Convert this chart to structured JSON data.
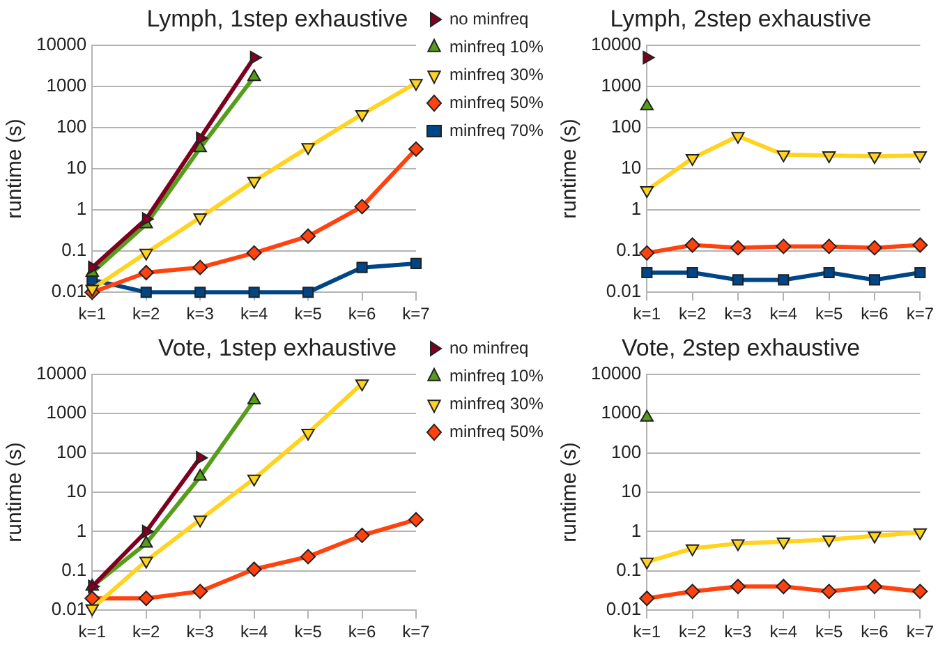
{
  "chart_data": [
    {
      "type": "line",
      "title": "Lymph, 1step exhaustive",
      "ylabel": "runtime (s)",
      "categories": [
        "k=1",
        "k=2",
        "k=3",
        "k=4",
        "k=5",
        "k=6",
        "k=7"
      ],
      "log": "y",
      "ylim": [
        0.01,
        10000
      ],
      "yticks": [
        0.01,
        0.1,
        1,
        10,
        100,
        1000,
        10000
      ],
      "grid": "y",
      "legend": "right",
      "line_style": "solid",
      "series": [
        {
          "name": "no minfreq",
          "color": "#7e0021",
          "marker": "triangle-right",
          "values": [
            0.04,
            0.6,
            55,
            5000,
            null,
            null,
            null
          ]
        },
        {
          "name": "minfreq 10%",
          "color": "#579d1c",
          "marker": "triangle",
          "values": [
            0.03,
            0.45,
            32,
            1700,
            null,
            null,
            null
          ]
        },
        {
          "name": "minfreq 30%",
          "color": "#ffd320",
          "marker": "triangle-down",
          "values": [
            0.012,
            0.09,
            0.65,
            5,
            33,
            210,
            1200
          ]
        },
        {
          "name": "minfreq 50%",
          "color": "#ff420e",
          "marker": "diamond",
          "values": [
            0.01,
            0.03,
            0.04,
            0.09,
            0.23,
            1.2,
            30
          ]
        },
        {
          "name": "minfreq 70%",
          "color": "#004586",
          "marker": "square",
          "values": [
            0.02,
            0.01,
            0.01,
            0.01,
            0.01,
            0.04,
            0.05
          ]
        }
      ]
    },
    {
      "type": "line",
      "title": "Lymph, 2step exhaustive",
      "ylabel": "runtime (s)",
      "categories": [
        "k=1",
        "k=2",
        "k=3",
        "k=4",
        "k=5",
        "k=6",
        "k=7"
      ],
      "log": "y",
      "ylim": [
        0.01,
        10000
      ],
      "yticks": [
        0.01,
        0.1,
        1,
        10,
        100,
        1000,
        10000
      ],
      "grid": "y",
      "line_style": "solid",
      "series": [
        {
          "color": "#7e0021",
          "marker": "triangle-right",
          "values": [
            5000,
            null,
            null,
            null,
            null,
            null,
            null
          ]
        },
        {
          "color": "#579d1c",
          "marker": "triangle",
          "values": [
            330,
            null,
            null,
            null,
            null,
            null,
            null
          ]
        },
        {
          "color": "#ffd320",
          "marker": "triangle-down",
          "values": [
            3,
            18,
            62,
            22,
            21,
            20,
            21
          ]
        },
        {
          "color": "#ff420e",
          "marker": "diamond",
          "values": [
            0.09,
            0.14,
            0.12,
            0.13,
            0.13,
            0.12,
            0.14
          ]
        },
        {
          "color": "#004586",
          "marker": "square",
          "values": [
            0.03,
            0.03,
            0.02,
            0.02,
            0.03,
            0.02,
            0.03
          ]
        }
      ]
    },
    {
      "type": "line",
      "title": "Vote, 1step exhaustive",
      "ylabel": "runtime (s)",
      "categories": [
        "k=1",
        "k=2",
        "k=3",
        "k=4",
        "k=5",
        "k=6",
        "k=7"
      ],
      "log": "y",
      "ylim": [
        0.01,
        10000
      ],
      "yticks": [
        0.01,
        0.1,
        1,
        10,
        100,
        1000,
        10000
      ],
      "grid": "y",
      "legend": "right",
      "line_style": "solid",
      "series": [
        {
          "name": "no minfreq",
          "color": "#7e0021",
          "marker": "triangle-right",
          "values": [
            0.04,
            1,
            75,
            null,
            null,
            null,
            null
          ]
        },
        {
          "name": "minfreq 10%",
          "color": "#579d1c",
          "marker": "triangle",
          "values": [
            0.04,
            0.5,
            25,
            2200,
            null,
            null,
            null
          ]
        },
        {
          "name": "minfreq 30%",
          "color": "#ffd320",
          "marker": "triangle-down",
          "values": [
            0.011,
            0.18,
            2,
            22,
            320,
            5800,
            null
          ]
        },
        {
          "name": "minfreq 50%",
          "color": "#ff420e",
          "marker": "diamond",
          "values": [
            0.02,
            0.02,
            0.03,
            0.11,
            0.23,
            0.8,
            2
          ]
        }
      ]
    },
    {
      "type": "line",
      "title": "Vote, 2step exhaustive",
      "ylabel": "runtime (s)",
      "categories": [
        "k=1",
        "k=2",
        "k=3",
        "k=4",
        "k=5",
        "k=6",
        "k=7"
      ],
      "log": "y",
      "ylim": [
        0.01,
        10000
      ],
      "yticks": [
        0.01,
        0.1,
        1,
        10,
        100,
        1000,
        10000
      ],
      "grid": "y",
      "line_style": "solid",
      "series": [
        {
          "color": "#579d1c",
          "marker": "triangle",
          "values": [
            800,
            null,
            null,
            null,
            null,
            null,
            null
          ]
        },
        {
          "color": "#ffd320",
          "marker": "triangle-down",
          "values": [
            0.17,
            0.37,
            0.5,
            0.55,
            0.62,
            0.78,
            0.95
          ]
        },
        {
          "color": "#ff420e",
          "marker": "diamond",
          "values": [
            0.02,
            0.03,
            0.04,
            0.04,
            0.03,
            0.04,
            0.03
          ]
        }
      ]
    }
  ]
}
